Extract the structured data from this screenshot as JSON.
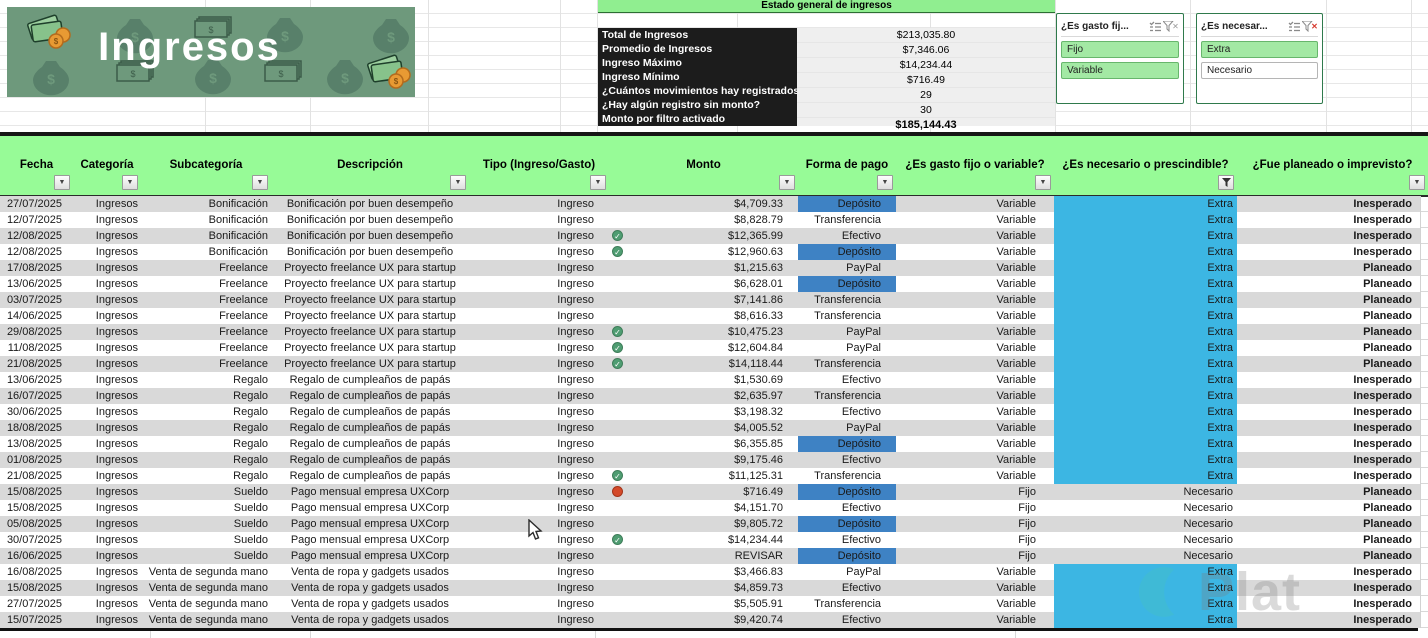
{
  "banner": {
    "title": "Ingresos"
  },
  "summary": {
    "title": "Estado general de ingresos",
    "rows": [
      {
        "label": "Total de Ingresos",
        "value": "$213,035.80"
      },
      {
        "label": "Promedio de Ingresos",
        "value": "$7,346.06"
      },
      {
        "label": "Ingreso Máximo",
        "value": "$14,234.44"
      },
      {
        "label": "Ingreso Mínimo",
        "value": "$716.49"
      },
      {
        "label": "¿Cuántos movimientos hay registrados?",
        "value": "29"
      },
      {
        "label": "¿Hay algún registro sin monto?",
        "value": "30"
      },
      {
        "label": "Monto por filtro activado",
        "value": "$185,144.43",
        "bold": true
      }
    ]
  },
  "slicers": [
    {
      "title": "¿Es gasto fij...",
      "clear_filter_active": false,
      "items": [
        {
          "label": "Fijo",
          "selected": true
        },
        {
          "label": "Variable",
          "selected": true
        }
      ]
    },
    {
      "title": "¿Es necesar...",
      "clear_filter_active": true,
      "items": [
        {
          "label": "Extra",
          "selected": true
        },
        {
          "label": "Necesario",
          "selected": false
        }
      ]
    }
  ],
  "table": {
    "columns": [
      {
        "key": "fecha",
        "label": "Fecha",
        "filter": "dropdown"
      },
      {
        "key": "categoria",
        "label": "Categoría",
        "filter": "dropdown"
      },
      {
        "key": "subcategoria",
        "label": "Subcategoría",
        "filter": "dropdown"
      },
      {
        "key": "descripcion",
        "label": "Descripción",
        "filter": "dropdown"
      },
      {
        "key": "tipo",
        "label": "Tipo (Ingreso/Gasto)",
        "filter": "dropdown"
      },
      {
        "key": "monto",
        "label": "Monto",
        "filter": "dropdown"
      },
      {
        "key": "forma",
        "label": "Forma de pago",
        "filter": "dropdown"
      },
      {
        "key": "gasto",
        "label": "¿Es gasto fijo o variable?",
        "filter": "dropdown"
      },
      {
        "key": "necesario",
        "label": "¿Es necesario o prescindible?",
        "filter": "funnel"
      },
      {
        "key": "planeado",
        "label": "¿Fue planeado o imprevisto?",
        "filter": "dropdown"
      }
    ],
    "rows": [
      {
        "fecha": "27/07/2025",
        "categoria": "Ingresos",
        "subcategoria": "Bonificación",
        "descripcion": "Bonificación por buen desempeño",
        "tipo": "Ingreso",
        "icon": "",
        "monto": "$4,709.33",
        "forma": "Depósito",
        "gasto": "Variable",
        "necesario": "Extra",
        "planeado": "Inesperado"
      },
      {
        "fecha": "12/07/2025",
        "categoria": "Ingresos",
        "subcategoria": "Bonificación",
        "descripcion": "Bonificación por buen desempeño",
        "tipo": "Ingreso",
        "icon": "",
        "monto": "$8,828.79",
        "forma": "Transferencia",
        "gasto": "Variable",
        "necesario": "Extra",
        "planeado": "Inesperado"
      },
      {
        "fecha": "12/08/2025",
        "categoria": "Ingresos",
        "subcategoria": "Bonificación",
        "descripcion": "Bonificación por buen desempeño",
        "tipo": "Ingreso",
        "icon": "check",
        "monto": "$12,365.99",
        "forma": "Efectivo",
        "gasto": "Variable",
        "necesario": "Extra",
        "planeado": "Inesperado"
      },
      {
        "fecha": "12/08/2025",
        "categoria": "Ingresos",
        "subcategoria": "Bonificación",
        "descripcion": "Bonificación por buen desempeño",
        "tipo": "Ingreso",
        "icon": "check",
        "monto": "$12,960.63",
        "forma": "Depósito",
        "gasto": "Variable",
        "necesario": "Extra",
        "planeado": "Inesperado"
      },
      {
        "fecha": "17/08/2025",
        "categoria": "Ingresos",
        "subcategoria": "Freelance",
        "descripcion": "Proyecto freelance UX para startup",
        "tipo": "Ingreso",
        "icon": "",
        "monto": "$1,215.63",
        "forma": "PayPal",
        "gasto": "Variable",
        "necesario": "Extra",
        "planeado": "Planeado"
      },
      {
        "fecha": "13/06/2025",
        "categoria": "Ingresos",
        "subcategoria": "Freelance",
        "descripcion": "Proyecto freelance UX para startup",
        "tipo": "Ingreso",
        "icon": "",
        "monto": "$6,628.01",
        "forma": "Depósito",
        "gasto": "Variable",
        "necesario": "Extra",
        "planeado": "Planeado"
      },
      {
        "fecha": "03/07/2025",
        "categoria": "Ingresos",
        "subcategoria": "Freelance",
        "descripcion": "Proyecto freelance UX para startup",
        "tipo": "Ingreso",
        "icon": "",
        "monto": "$7,141.86",
        "forma": "Transferencia",
        "gasto": "Variable",
        "necesario": "Extra",
        "planeado": "Planeado"
      },
      {
        "fecha": "14/06/2025",
        "categoria": "Ingresos",
        "subcategoria": "Freelance",
        "descripcion": "Proyecto freelance UX para startup",
        "tipo": "Ingreso",
        "icon": "",
        "monto": "$8,616.33",
        "forma": "Transferencia",
        "gasto": "Variable",
        "necesario": "Extra",
        "planeado": "Planeado"
      },
      {
        "fecha": "29/08/2025",
        "categoria": "Ingresos",
        "subcategoria": "Freelance",
        "descripcion": "Proyecto freelance UX para startup",
        "tipo": "Ingreso",
        "icon": "check",
        "monto": "$10,475.23",
        "forma": "PayPal",
        "gasto": "Variable",
        "necesario": "Extra",
        "planeado": "Planeado"
      },
      {
        "fecha": "11/08/2025",
        "categoria": "Ingresos",
        "subcategoria": "Freelance",
        "descripcion": "Proyecto freelance UX para startup",
        "tipo": "Ingreso",
        "icon": "check",
        "monto": "$12,604.84",
        "forma": "PayPal",
        "gasto": "Variable",
        "necesario": "Extra",
        "planeado": "Planeado"
      },
      {
        "fecha": "21/08/2025",
        "categoria": "Ingresos",
        "subcategoria": "Freelance",
        "descripcion": "Proyecto freelance UX para startup",
        "tipo": "Ingreso",
        "icon": "check",
        "monto": "$14,118.44",
        "forma": "Transferencia",
        "gasto": "Variable",
        "necesario": "Extra",
        "planeado": "Planeado"
      },
      {
        "fecha": "13/06/2025",
        "categoria": "Ingresos",
        "subcategoria": "Regalo",
        "descripcion": "Regalo de cumpleaños de papás",
        "tipo": "Ingreso",
        "icon": "",
        "monto": "$1,530.69",
        "forma": "Efectivo",
        "gasto": "Variable",
        "necesario": "Extra",
        "planeado": "Inesperado"
      },
      {
        "fecha": "16/07/2025",
        "categoria": "Ingresos",
        "subcategoria": "Regalo",
        "descripcion": "Regalo de cumpleaños de papás",
        "tipo": "Ingreso",
        "icon": "",
        "monto": "$2,635.97",
        "forma": "Transferencia",
        "gasto": "Variable",
        "necesario": "Extra",
        "planeado": "Inesperado"
      },
      {
        "fecha": "30/06/2025",
        "categoria": "Ingresos",
        "subcategoria": "Regalo",
        "descripcion": "Regalo de cumpleaños de papás",
        "tipo": "Ingreso",
        "icon": "",
        "monto": "$3,198.32",
        "forma": "Efectivo",
        "gasto": "Variable",
        "necesario": "Extra",
        "planeado": "Inesperado"
      },
      {
        "fecha": "18/08/2025",
        "categoria": "Ingresos",
        "subcategoria": "Regalo",
        "descripcion": "Regalo de cumpleaños de papás",
        "tipo": "Ingreso",
        "icon": "",
        "monto": "$4,005.52",
        "forma": "PayPal",
        "gasto": "Variable",
        "necesario": "Extra",
        "planeado": "Inesperado"
      },
      {
        "fecha": "13/08/2025",
        "categoria": "Ingresos",
        "subcategoria": "Regalo",
        "descripcion": "Regalo de cumpleaños de papás",
        "tipo": "Ingreso",
        "icon": "",
        "monto": "$6,355.85",
        "forma": "Depósito",
        "gasto": "Variable",
        "necesario": "Extra",
        "planeado": "Inesperado"
      },
      {
        "fecha": "01/08/2025",
        "categoria": "Ingresos",
        "subcategoria": "Regalo",
        "descripcion": "Regalo de cumpleaños de papás",
        "tipo": "Ingreso",
        "icon": "",
        "monto": "$9,175.46",
        "forma": "Efectivo",
        "gasto": "Variable",
        "necesario": "Extra",
        "planeado": "Inesperado"
      },
      {
        "fecha": "21/08/2025",
        "categoria": "Ingresos",
        "subcategoria": "Regalo",
        "descripcion": "Regalo de cumpleaños de papás",
        "tipo": "Ingreso",
        "icon": "check",
        "monto": "$11,125.31",
        "forma": "Transferencia",
        "gasto": "Variable",
        "necesario": "Extra",
        "planeado": "Inesperado"
      },
      {
        "fecha": "15/08/2025",
        "categoria": "Ingresos",
        "subcategoria": "Sueldo",
        "descripcion": "Pago mensual empresa UXCorp",
        "tipo": "Ingreso",
        "icon": "alert",
        "monto": "$716.49",
        "forma": "Depósito",
        "gasto": "Fijo",
        "necesario": "Necesario",
        "planeado": "Planeado"
      },
      {
        "fecha": "15/08/2025",
        "categoria": "Ingresos",
        "subcategoria": "Sueldo",
        "descripcion": "Pago mensual empresa UXCorp",
        "tipo": "Ingreso",
        "icon": "",
        "monto": "$4,151.70",
        "forma": "Efectivo",
        "gasto": "Fijo",
        "necesario": "Necesario",
        "planeado": "Planeado"
      },
      {
        "fecha": "05/08/2025",
        "categoria": "Ingresos",
        "subcategoria": "Sueldo",
        "descripcion": "Pago mensual empresa UXCorp",
        "tipo": "Ingreso",
        "icon": "",
        "monto": "$9,805.72",
        "forma": "Depósito",
        "gasto": "Fijo",
        "necesario": "Necesario",
        "planeado": "Planeado"
      },
      {
        "fecha": "30/07/2025",
        "categoria": "Ingresos",
        "subcategoria": "Sueldo",
        "descripcion": "Pago mensual empresa UXCorp",
        "tipo": "Ingreso",
        "icon": "check",
        "monto": "$14,234.44",
        "forma": "Efectivo",
        "gasto": "Fijo",
        "necesario": "Necesario",
        "planeado": "Planeado"
      },
      {
        "fecha": "16/06/2025",
        "categoria": "Ingresos",
        "subcategoria": "Sueldo",
        "descripcion": "Pago mensual empresa UXCorp",
        "tipo": "Ingreso",
        "icon": "",
        "monto": "REVISAR",
        "forma": "Depósito",
        "gasto": "Fijo",
        "necesario": "Necesario",
        "planeado": "Planeado"
      },
      {
        "fecha": "16/08/2025",
        "categoria": "Ingresos",
        "subcategoria": "Venta de segunda mano",
        "descripcion": "Venta de ropa y gadgets usados",
        "tipo": "Ingreso",
        "icon": "",
        "monto": "$3,466.83",
        "forma": "PayPal",
        "gasto": "Variable",
        "necesario": "Extra",
        "planeado": "Inesperado"
      },
      {
        "fecha": "15/08/2025",
        "categoria": "Ingresos",
        "subcategoria": "Venta de segunda mano",
        "descripcion": "Venta de ropa y gadgets usados",
        "tipo": "Ingreso",
        "icon": "",
        "monto": "$4,859.73",
        "forma": "Efectivo",
        "gasto": "Variable",
        "necesario": "Extra",
        "planeado": "Inesperado"
      },
      {
        "fecha": "27/07/2025",
        "categoria": "Ingresos",
        "subcategoria": "Venta de segunda mano",
        "descripcion": "Venta de ropa y gadgets usados",
        "tipo": "Ingreso",
        "icon": "",
        "monto": "$5,505.91",
        "forma": "Transferencia",
        "gasto": "Variable",
        "necesario": "Extra",
        "planeado": "Inesperado"
      },
      {
        "fecha": "15/07/2025",
        "categoria": "Ingresos",
        "subcategoria": "Venta de segunda mano",
        "descripcion": "Venta de ropa y gadgets usados",
        "tipo": "Ingreso",
        "icon": "",
        "monto": "$9,420.74",
        "forma": "Efectivo",
        "gasto": "Variable",
        "necesario": "Extra",
        "planeado": "Inesperado"
      }
    ]
  },
  "watermark": {
    "text": "Plat"
  },
  "colors": {
    "banner_green": "#6e997c",
    "header_green": "#97fb97",
    "summary_title_green": "#90ee90",
    "slicer_selected_green": "#a3e9a4",
    "deposit_blue": "#3e82c4",
    "extra_cyan": "#3cb6e3",
    "band_gray": "#d9d9d9",
    "status_check_green": "#4f9d72",
    "status_alert_red": "#d44a2a"
  }
}
